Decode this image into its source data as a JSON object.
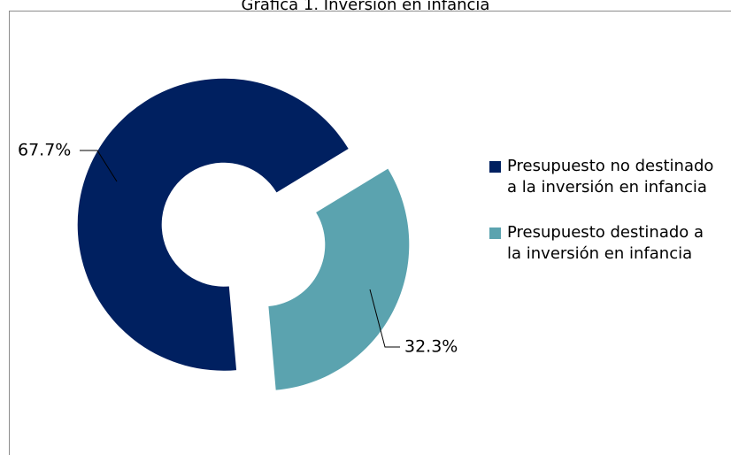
{
  "chart_data": {
    "type": "donut",
    "title": "Gráfica 1. Inversión en infancia",
    "categories": [
      "Presupuesto no destinado a la inversión en infancia",
      "Presupuesto destinado a la inversión en infancia"
    ],
    "values": [
      67.7,
      32.3
    ],
    "value_labels": [
      "67.7%",
      "32.3%"
    ],
    "colors": [
      "#002060",
      "#5ba3af"
    ],
    "legend": "right"
  }
}
